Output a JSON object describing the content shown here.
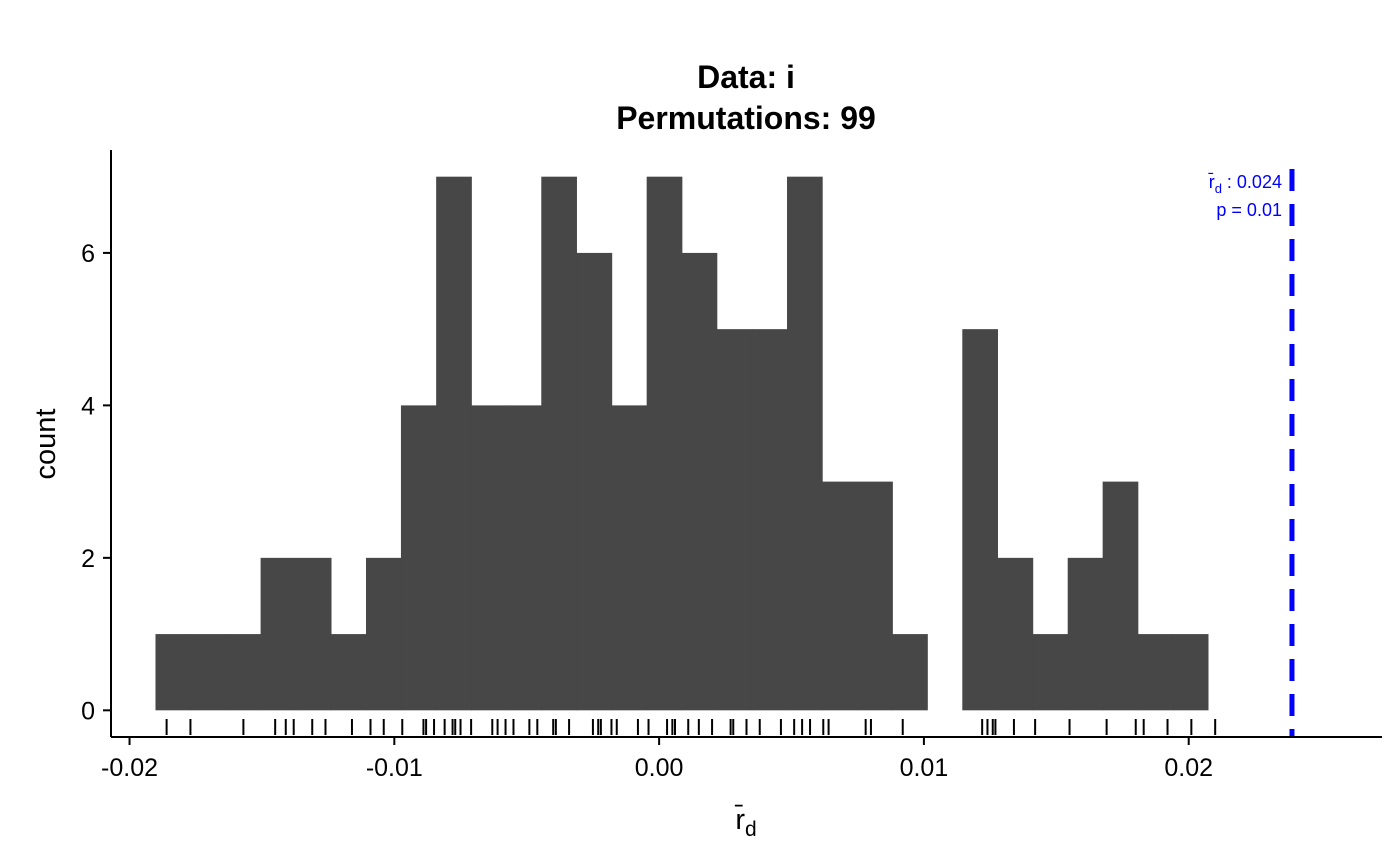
{
  "chart_data": {
    "type": "bar",
    "title_lines": [
      "Data: i",
      "Permutations: 99"
    ],
    "xlabel_base": "r̄",
    "xlabel_sub": "d",
    "ylabel": "count",
    "bin_width": 0.001325,
    "bins": [
      {
        "x0": -0.01902,
        "count": 1
      },
      {
        "x0": -0.0177,
        "count": 1
      },
      {
        "x0": -0.01637,
        "count": 1
      },
      {
        "x0": -0.01505,
        "count": 2
      },
      {
        "x0": -0.01372,
        "count": 2
      },
      {
        "x0": -0.0124,
        "count": 1
      },
      {
        "x0": -0.01107,
        "count": 2
      },
      {
        "x0": -0.00975,
        "count": 4
      },
      {
        "x0": -0.00842,
        "count": 7
      },
      {
        "x0": -0.0071,
        "count": 4
      },
      {
        "x0": -0.00577,
        "count": 4
      },
      {
        "x0": -0.00445,
        "count": 7
      },
      {
        "x0": -0.00312,
        "count": 6
      },
      {
        "x0": -0.0018,
        "count": 4
      },
      {
        "x0": -0.00047,
        "count": 7
      },
      {
        "x0": 0.00085,
        "count": 6
      },
      {
        "x0": 0.00218,
        "count": 5
      },
      {
        "x0": 0.0035,
        "count": 5
      },
      {
        "x0": 0.00483,
        "count": 7
      },
      {
        "x0": 0.00615,
        "count": 3
      },
      {
        "x0": 0.00748,
        "count": 3
      },
      {
        "x0": 0.0088,
        "count": 1
      },
      {
        "x0": 0.01013,
        "count": 0
      },
      {
        "x0": 0.01145,
        "count": 5
      },
      {
        "x0": 0.01278,
        "count": 2
      },
      {
        "x0": 0.0141,
        "count": 1
      },
      {
        "x0": 0.01543,
        "count": 2
      },
      {
        "x0": 0.01675,
        "count": 3
      },
      {
        "x0": 0.01808,
        "count": 1
      },
      {
        "x0": 0.0194,
        "count": 1
      }
    ],
    "rug": [
      -0.0186,
      -0.0177,
      -0.0157,
      -0.0145,
      -0.0141,
      -0.0138,
      -0.0131,
      -0.0126,
      -0.0116,
      -0.0109,
      -0.0104,
      -0.0097,
      -0.0089,
      -0.0088,
      -0.0085,
      -0.0081,
      -0.0078,
      -0.0077,
      -0.0075,
      -0.0071,
      -0.0063,
      -0.0061,
      -0.0058,
      -0.0055,
      -0.0049,
      -0.0046,
      -0.004,
      -0.0039,
      -0.0034,
      -0.0025,
      -0.0023,
      -0.0022,
      -0.0018,
      -0.0016,
      -0.0008,
      -0.0004,
      0.0003,
      0.0005,
      0.0006,
      0.0011,
      0.0015,
      0.002,
      0.0027,
      0.0028,
      0.0033,
      0.0038,
      0.0046,
      0.0051,
      0.0054,
      0.0057,
      0.0062,
      0.0064,
      0.0078,
      0.008,
      0.0092,
      0.0122,
      0.0124,
      0.0126,
      0.0127,
      0.0134,
      0.0142,
      0.0155,
      0.0169,
      0.018,
      0.0183,
      0.0192,
      0.0201,
      0.021
    ],
    "x_ticks": [
      -0.02,
      -0.01,
      0.0,
      0.01,
      0.02
    ],
    "x_tick_labels": [
      "-0.02",
      "-0.01",
      "0.00",
      "0.01",
      "0.02"
    ],
    "y_ticks": [
      0,
      2,
      4,
      6
    ],
    "y_tick_labels": [
      "0",
      "2",
      "4",
      "6"
    ],
    "xlim": [
      -0.0207,
      0.0273
    ],
    "ylim": [
      -0.35,
      7.35
    ],
    "observed": {
      "value": 0.0239,
      "color": "#0000FF",
      "label_stat": "r̄",
      "label_sub": "d",
      "label_value": " : 0.024",
      "label_p": "p = 0.01"
    },
    "bar_color": "#474747",
    "grid": false,
    "legend": "none"
  }
}
